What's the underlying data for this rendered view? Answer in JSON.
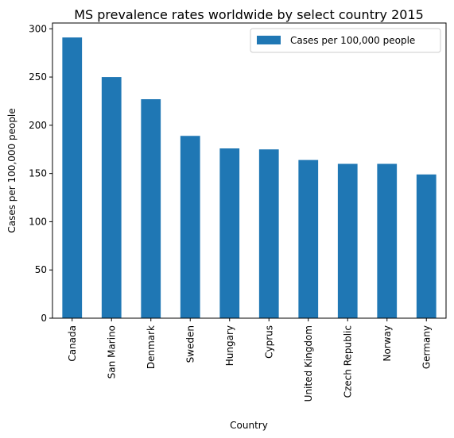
{
  "chart_data": {
    "type": "bar",
    "title": "MS prevalence rates worldwide by select country 2015",
    "xlabel": "Country",
    "ylabel": "Cases per 100,000 people",
    "categories": [
      "Canada",
      "San Marino",
      "Denmark",
      "Sweden",
      "Hungary",
      "Cyprus",
      "United Kingdom",
      "Czech Republic",
      "Norway",
      "Germany"
    ],
    "series": [
      {
        "name": "Cases per 100,000 people",
        "values": [
          291,
          250,
          227,
          189,
          176,
          175,
          164,
          160,
          160,
          149
        ],
        "color": "#1f77b4"
      }
    ],
    "yticks": [
      0,
      50,
      100,
      150,
      200,
      250,
      300
    ],
    "ylim": [
      0,
      306
    ],
    "grid": false,
    "legend_position": "top-right"
  }
}
